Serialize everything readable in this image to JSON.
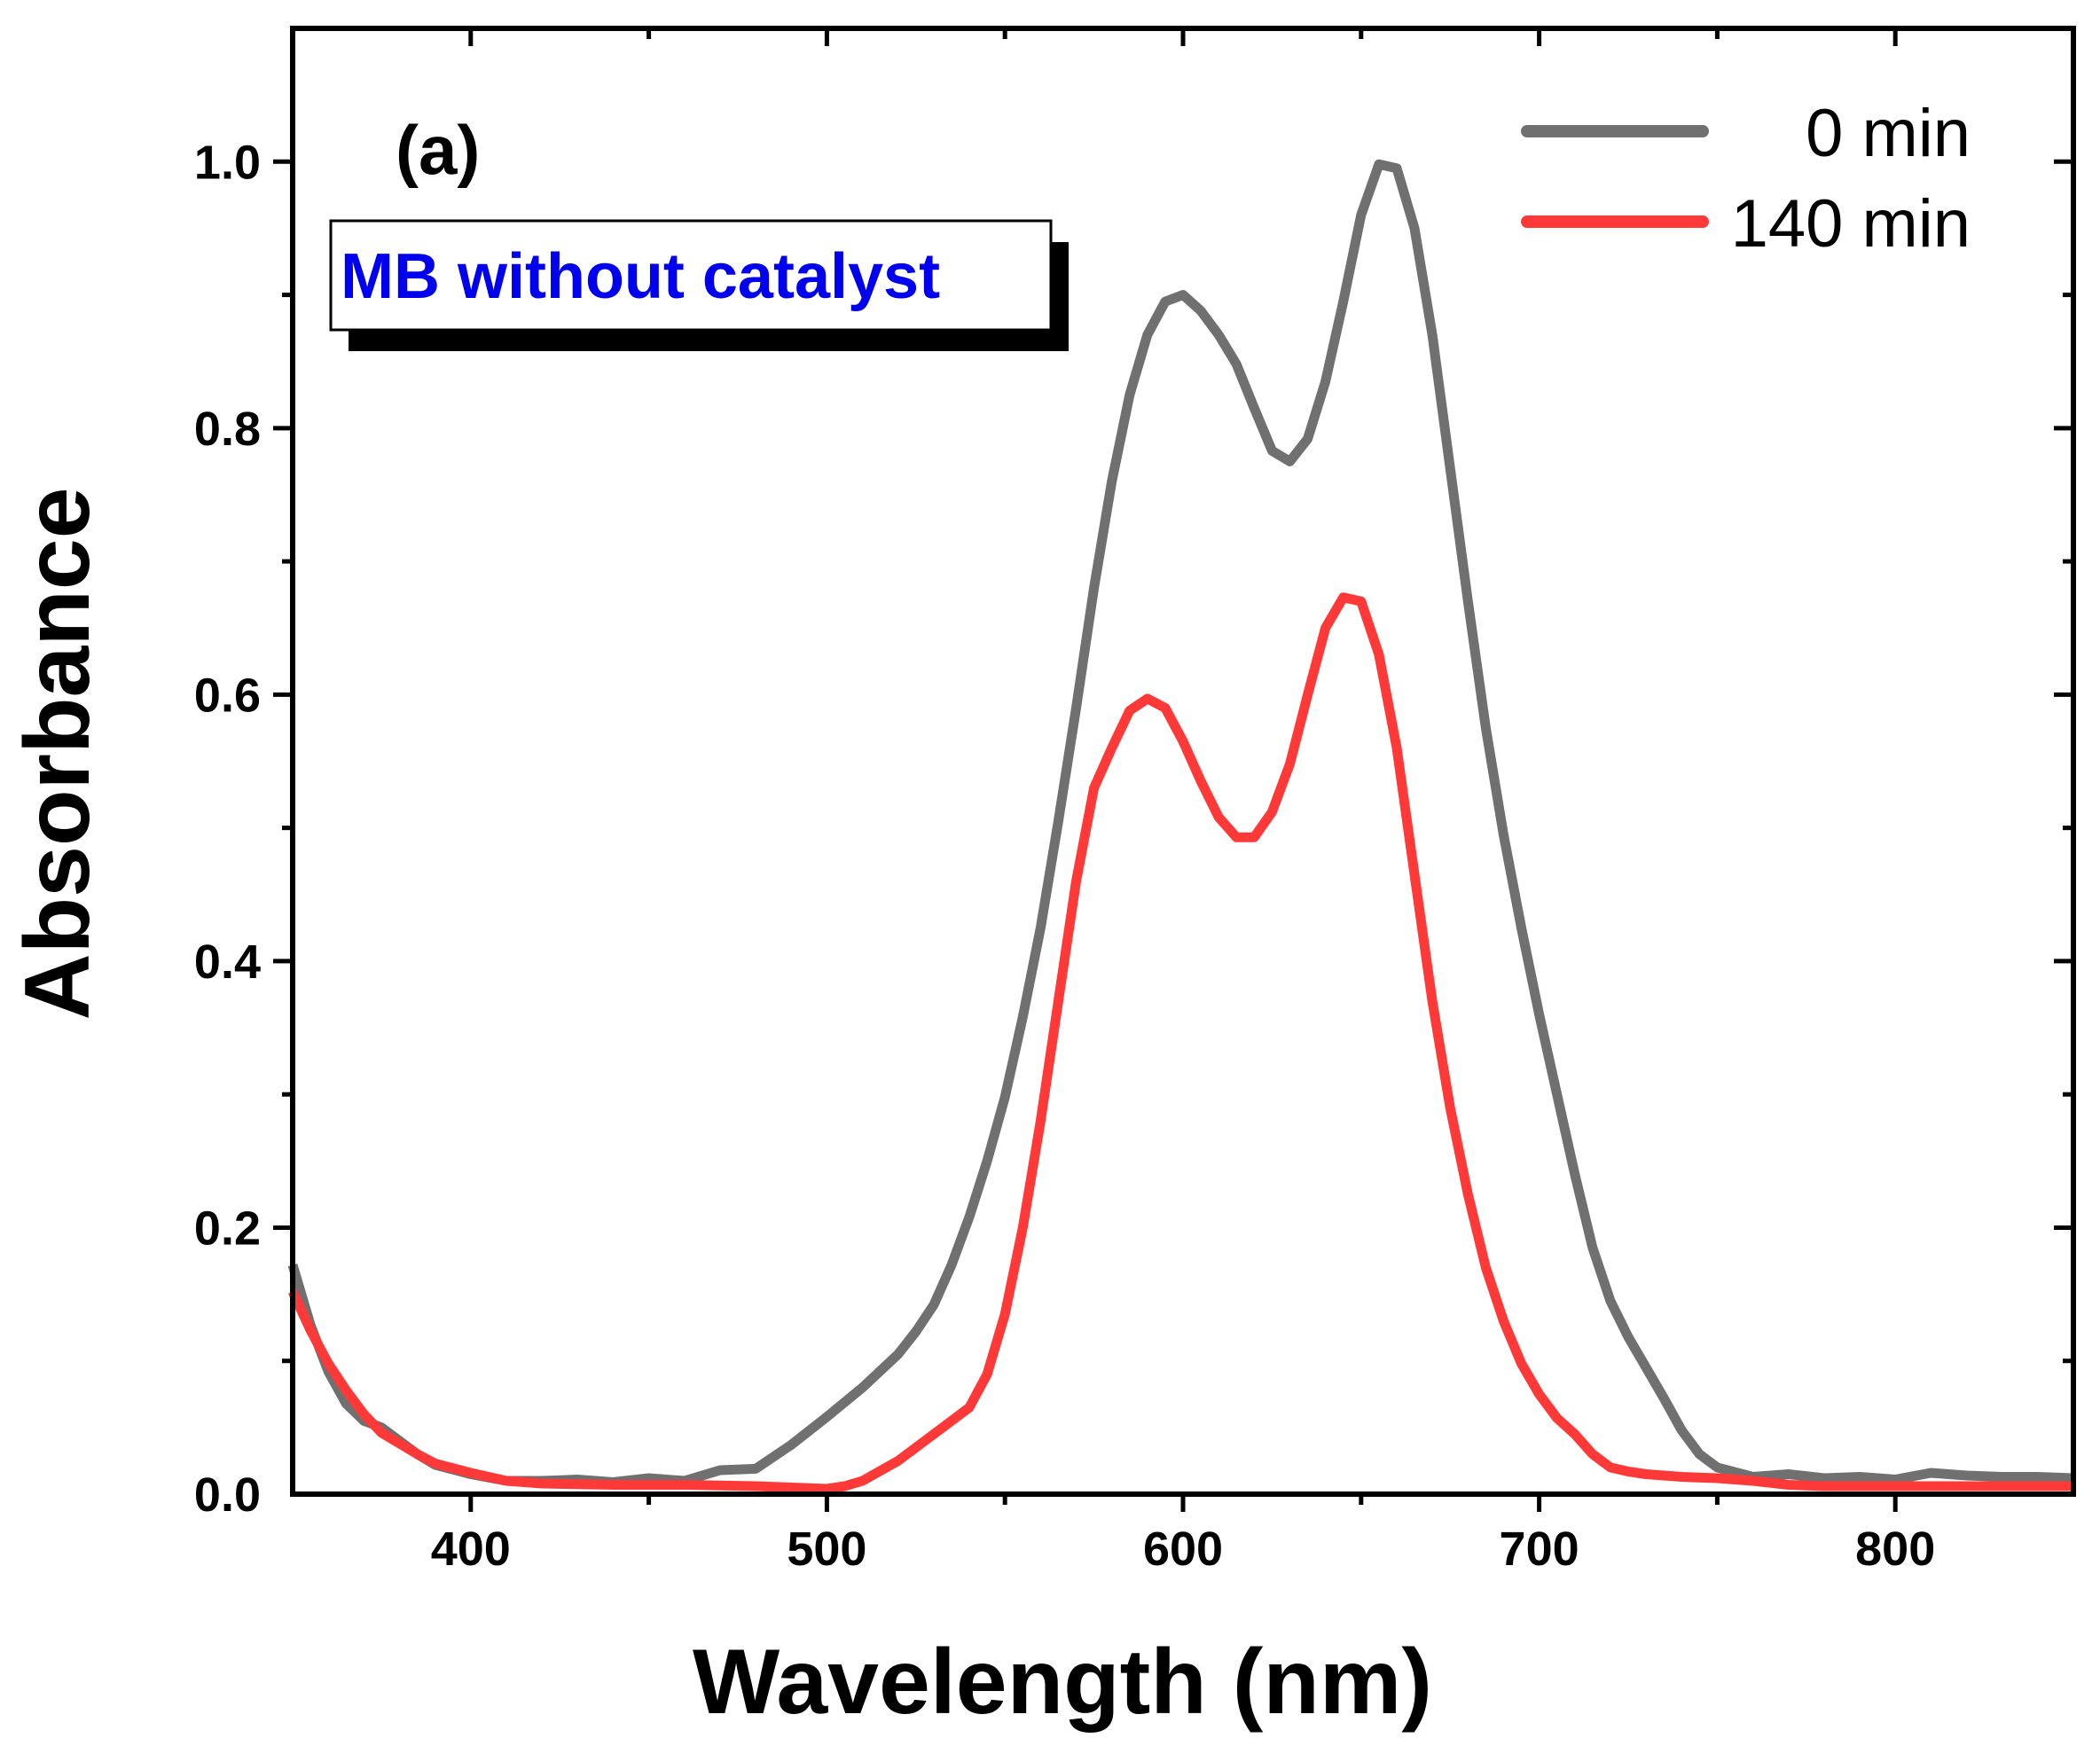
{
  "chart_data": {
    "type": "line",
    "panel_label": "(a)",
    "annotation": "MB without catalyst",
    "xlabel": "Wavelength  (nm)",
    "ylabel": "Absorbance",
    "xlim": [
      350,
      850
    ],
    "ylim": [
      0,
      1.1
    ],
    "xticks": [
      400,
      500,
      600,
      700,
      800
    ],
    "xtick_labels": [
      "400",
      "500",
      "600",
      "700",
      "800"
    ],
    "yticks": [
      0.0,
      0.2,
      0.4,
      0.6,
      0.8,
      1.0
    ],
    "ytick_labels": [
      "0.0",
      "0.2",
      "0.4",
      "0.6",
      "0.8",
      "1.0"
    ],
    "legend_position": "top-right",
    "grid": false,
    "colors": {
      "s0": "#707070",
      "s1": "#ff3838"
    },
    "series": [
      {
        "name": "0 min",
        "color": "#707070",
        "x": [
          350,
          355,
          360,
          365,
          370,
          375,
          380,
          385,
          390,
          400,
          410,
          420,
          430,
          440,
          450,
          460,
          470,
          480,
          490,
          500,
          510,
          520,
          525,
          530,
          535,
          540,
          545,
          550,
          555,
          560,
          565,
          570,
          575,
          580,
          585,
          590,
          595,
          600,
          605,
          610,
          615,
          620,
          625,
          630,
          635,
          640,
          645,
          650,
          655,
          660,
          665,
          670,
          675,
          680,
          685,
          690,
          695,
          700,
          705,
          710,
          715,
          720,
          725,
          730,
          735,
          740,
          745,
          750,
          760,
          770,
          780,
          790,
          800,
          810,
          820,
          830,
          840,
          850
        ],
        "y": [
          0.172,
          0.127,
          0.092,
          0.068,
          0.055,
          0.05,
          0.04,
          0.03,
          0.022,
          0.015,
          0.01,
          0.01,
          0.011,
          0.009,
          0.012,
          0.01,
          0.018,
          0.019,
          0.037,
          0.058,
          0.08,
          0.105,
          0.122,
          0.142,
          0.172,
          0.208,
          0.25,
          0.298,
          0.358,
          0.425,
          0.505,
          0.59,
          0.68,
          0.76,
          0.825,
          0.87,
          0.895,
          0.9,
          0.888,
          0.87,
          0.848,
          0.815,
          0.783,
          0.775,
          0.792,
          0.835,
          0.895,
          0.96,
          0.998,
          0.995,
          0.95,
          0.87,
          0.77,
          0.67,
          0.575,
          0.495,
          0.425,
          0.36,
          0.3,
          0.24,
          0.185,
          0.145,
          0.118,
          0.095,
          0.072,
          0.048,
          0.03,
          0.02,
          0.013,
          0.015,
          0.012,
          0.013,
          0.011,
          0.016,
          0.014,
          0.013,
          0.013,
          0.012
        ]
      },
      {
        "name": "140 min",
        "color": "#ff3838",
        "x": [
          350,
          355,
          360,
          365,
          370,
          375,
          380,
          385,
          390,
          400,
          410,
          420,
          440,
          460,
          480,
          500,
          505,
          510,
          520,
          530,
          540,
          545,
          550,
          555,
          560,
          565,
          570,
          575,
          580,
          585,
          590,
          595,
          600,
          605,
          610,
          615,
          620,
          625,
          630,
          635,
          640,
          645,
          650,
          655,
          660,
          665,
          670,
          675,
          680,
          685,
          690,
          695,
          700,
          705,
          710,
          715,
          720,
          725,
          730,
          740,
          750,
          760,
          770,
          780,
          800,
          820,
          850
        ],
        "y": [
          0.152,
          0.123,
          0.098,
          0.078,
          0.06,
          0.046,
          0.038,
          0.03,
          0.023,
          0.016,
          0.01,
          0.008,
          0.007,
          0.007,
          0.006,
          0.004,
          0.006,
          0.01,
          0.025,
          0.045,
          0.065,
          0.09,
          0.135,
          0.2,
          0.28,
          0.37,
          0.46,
          0.53,
          0.56,
          0.588,
          0.597,
          0.59,
          0.565,
          0.535,
          0.508,
          0.493,
          0.493,
          0.512,
          0.548,
          0.6,
          0.65,
          0.673,
          0.67,
          0.63,
          0.56,
          0.465,
          0.37,
          0.29,
          0.225,
          0.17,
          0.13,
          0.098,
          0.075,
          0.057,
          0.045,
          0.03,
          0.02,
          0.017,
          0.015,
          0.013,
          0.012,
          0.01,
          0.007,
          0.006,
          0.006,
          0.006,
          0.006
        ]
      }
    ]
  }
}
